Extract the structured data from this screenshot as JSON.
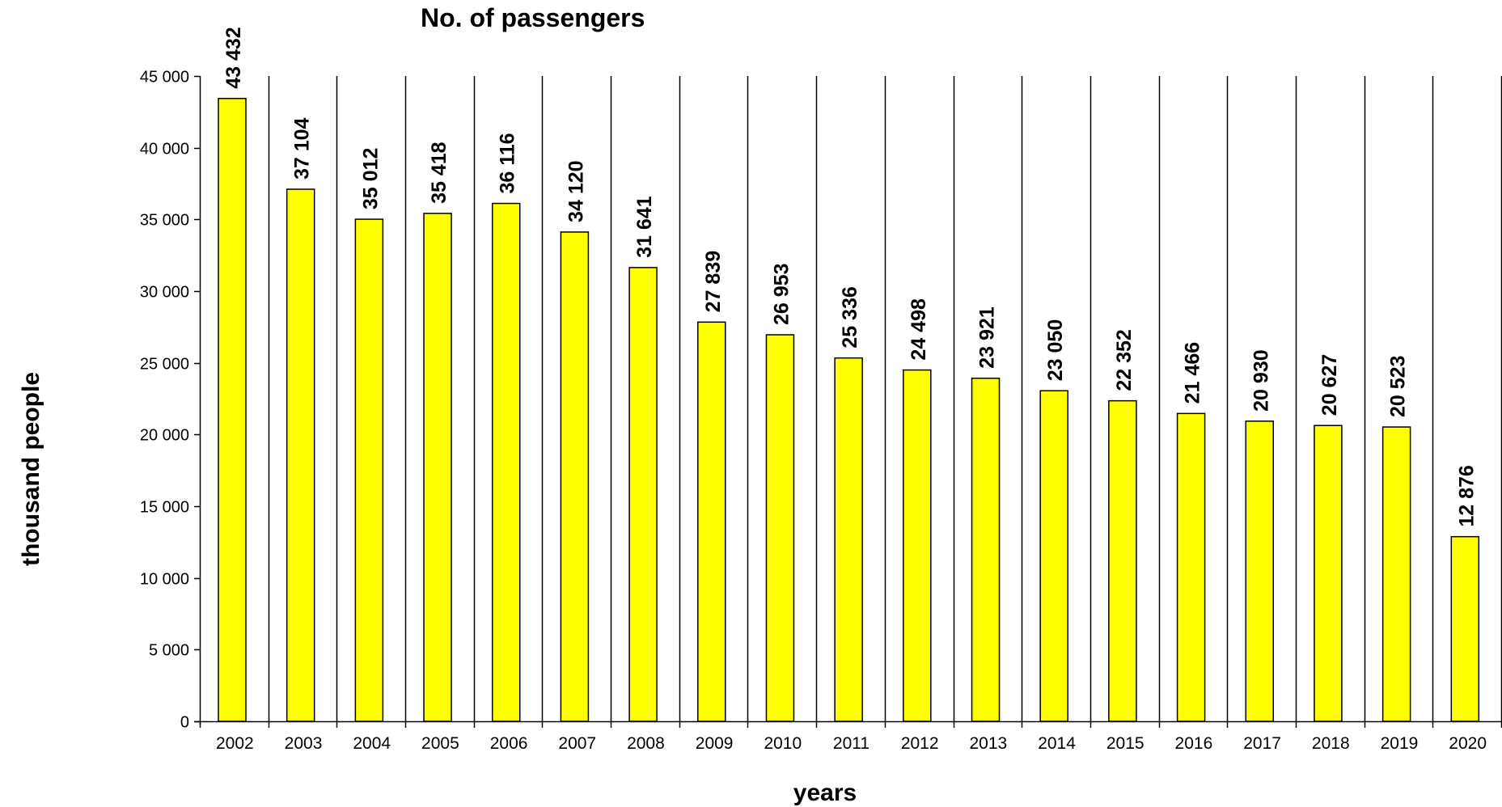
{
  "colors": {
    "bar_fill": "#ffff00",
    "bar_stroke": "#000000",
    "background": "#ffffff",
    "text": "#000000"
  },
  "chart_data": {
    "type": "bar",
    "title": "No. of passengers",
    "xlabel": "years",
    "ylabel": "thousand people",
    "ylim": [
      0,
      45000
    ],
    "yticks": [
      0,
      5000,
      10000,
      15000,
      20000,
      25000,
      30000,
      35000,
      40000,
      45000
    ],
    "ytick_labels": [
      "0",
      "5 000",
      "10 000",
      "15 000",
      "20 000",
      "25 000",
      "30 000",
      "35 000",
      "40 000",
      "45 000"
    ],
    "grid": "vertical category separators",
    "categories": [
      "2002",
      "2003",
      "2004",
      "2005",
      "2006",
      "2007",
      "2008",
      "2009",
      "2010",
      "2011",
      "2012",
      "2013",
      "2014",
      "2015",
      "2016",
      "2017",
      "2018",
      "2019",
      "2020"
    ],
    "values": [
      43432,
      37104,
      35012,
      35418,
      36116,
      34120,
      31641,
      27839,
      26953,
      25336,
      24498,
      23921,
      23050,
      22352,
      21466,
      20930,
      20627,
      20523,
      12876
    ],
    "value_labels": [
      "43 432",
      "37 104",
      "35 012",
      "35 418",
      "36 116",
      "34 120",
      "31 641",
      "27 839",
      "26 953",
      "25 336",
      "24 498",
      "23 921",
      "23 050",
      "22 352",
      "21 466",
      "20 930",
      "20 627",
      "20 523",
      "12 876"
    ]
  }
}
